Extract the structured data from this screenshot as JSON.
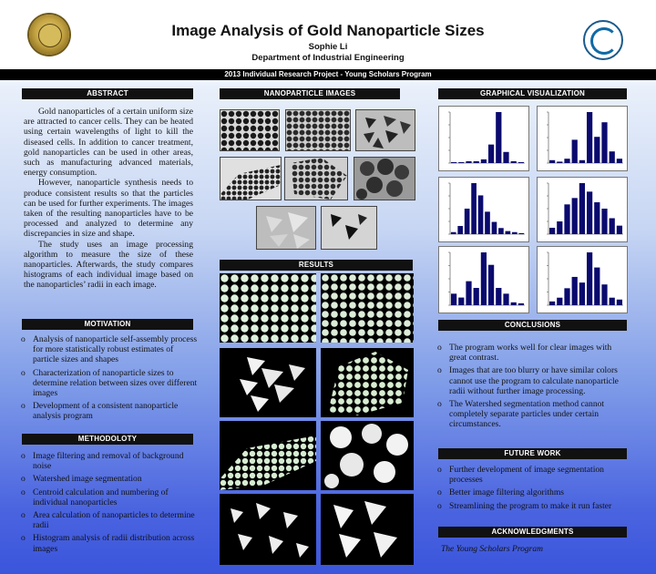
{
  "header": {
    "title": "Image Analysis of Gold Nanoparticle Sizes",
    "author": "Sophie Li",
    "department": "Department of Industrial Engineering",
    "banner": "2013 Individual Research Project - Young Scholars Program",
    "left_logo": "university-seal",
    "right_logo": "college-of-engineering-logo"
  },
  "abstract": {
    "heading": "ABSTRACT",
    "paragraphs": [
      "Gold nanoparticles of a certain uniform size are attracted to cancer cells. They can be heated using certain wavelengths of light to kill the diseased cells.  In addition to cancer treatment, gold nanoparticles can be used in other areas, such as manufacturing advanced materials, energy consumption.",
      "However, nanoparticle synthesis needs to produce consistent results so that the particles can be used for further experiments. The images taken of the resulting nanoparticles have to be processed and analyzed to determine any discrepancies in size and shape.",
      "The study uses an image processing algorithm to measure the size of these nanoparticles. Afterwards, the study compares histograms of each individual image based on the nanoparticles’ radii in each image."
    ]
  },
  "motivation": {
    "heading": "MOTIVATION",
    "items": [
      "Analysis of nanoparticle self-assembly process for more statistically robust estimates of particle sizes and shapes",
      "Characterization of nanoparticle sizes to determine relation between sizes over different images",
      "Development of a consistent nanoparticle analysis program"
    ]
  },
  "methodology": {
    "heading": "METHODOLOTY",
    "items": [
      "Image filtering and removal of background noise",
      "Watershed image segmentation",
      "Centroid calculation and numbering of individual nanoparticles",
      "Area calculation of nanoparticles to determine radii",
      "Histogram analysis of radii distribution across images"
    ]
  },
  "nanoparticle_images": {
    "heading": "NANOPARTICLE IMAGES"
  },
  "results": {
    "heading": "RESULTS"
  },
  "graphical": {
    "heading": "GRAPHICAL VISUALIZATION",
    "color": "#0a0a6e"
  },
  "chart_data": [
    {
      "type": "bar",
      "values": [
        1,
        1,
        2,
        2,
        4,
        20,
        55,
        12,
        2,
        1
      ]
    },
    {
      "type": "bar",
      "values": [
        2,
        1,
        3,
        16,
        2,
        35,
        18,
        28,
        8,
        3
      ]
    },
    {
      "type": "bar",
      "values": [
        2,
        8,
        25,
        50,
        38,
        22,
        12,
        6,
        3,
        2,
        1
      ]
    },
    {
      "type": "bar",
      "values": [
        6,
        12,
        28,
        34,
        48,
        40,
        30,
        24,
        15,
        8
      ]
    },
    {
      "type": "bar",
      "values": [
        12,
        8,
        25,
        18,
        55,
        42,
        18,
        12,
        3,
        2
      ]
    },
    {
      "type": "bar",
      "values": [
        4,
        8,
        18,
        30,
        24,
        56,
        40,
        22,
        8,
        6
      ]
    }
  ],
  "conclusions": {
    "heading": "CONCLUSIONS",
    "items": [
      "The program works well for clear images with great contrast.",
      "Images that are too blurry or have similar colors cannot use the program to calculate nanoparticle radii without further image processing.",
      "The Watershed segmentation method cannot completely separate particles under certain circumstances."
    ]
  },
  "future_work": {
    "heading": "FUTURE WORK",
    "items": [
      "Further development of image segmentation processes",
      "Better image filtering algorithms",
      "Streamlining the program to make it run faster"
    ]
  },
  "acknowledgments": {
    "heading": "ACKNOWLEDGMENTS",
    "text": "The Young Scholars Program"
  },
  "bullet": "o"
}
